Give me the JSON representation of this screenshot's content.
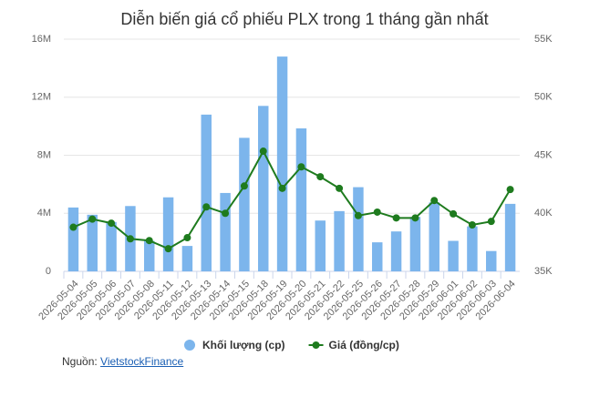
{
  "chart_data": {
    "type": "bar-line",
    "title": "Diễn biến giá cổ phiếu PLX trong 1 tháng gần nhất",
    "categories": [
      "2026-05-04",
      "2026-05-05",
      "2026-05-06",
      "2026-05-07",
      "2026-05-08",
      "2026-05-11",
      "2026-05-12",
      "2026-05-13",
      "2026-05-14",
      "2026-05-15",
      "2026-05-18",
      "2026-05-19",
      "2026-05-20",
      "2026-05-21",
      "2026-05-22",
      "2026-05-25",
      "2026-05-26",
      "2026-05-27",
      "2026-05-28",
      "2026-05-29",
      "2026-06-01",
      "2026-06-02",
      "2026-06-03",
      "2026-06-04"
    ],
    "series": [
      {
        "name": "Khối lượng (cp)",
        "type": "bar",
        "color": "#7cb5ec",
        "axis": "y",
        "values": [
          4400000,
          3900000,
          3400000,
          4500000,
          2100000,
          5100000,
          1750000,
          10800000,
          5400000,
          9200000,
          11400000,
          14800000,
          9850000,
          3500000,
          4150000,
          5800000,
          2000000,
          2750000,
          3750000,
          4750000,
          2100000,
          3100000,
          1400000,
          4650000
        ]
      },
      {
        "name": "Giá (đồng/cp)",
        "type": "line",
        "color": "#1e7b1e",
        "axis": "y2",
        "values": [
          38800,
          39500,
          39150,
          37800,
          37650,
          36950,
          37900,
          40550,
          40000,
          42350,
          45350,
          42150,
          44000,
          43150,
          42150,
          39800,
          40100,
          39600,
          39600,
          41100,
          39950,
          39000,
          39300,
          42050
        ]
      }
    ],
    "ylim": [
      0,
      16000000
    ],
    "yticks": [
      0,
      {
        "value": 4000000,
        "label": "4M"
      },
      {
        "value": 8000000,
        "label": "8M"
      },
      {
        "value": 12000000,
        "label": "12M"
      },
      {
        "value": 16000000,
        "label": "16M"
      }
    ],
    "y2lim": [
      35000,
      55000
    ],
    "y2ticks": [
      {
        "value": 35000,
        "label": "35K"
      },
      {
        "value": 40000,
        "label": "40K"
      },
      {
        "value": 45000,
        "label": "45K"
      },
      {
        "value": 50000,
        "label": "50K"
      },
      {
        "value": 55000,
        "label": "55K"
      }
    ],
    "grid": true
  },
  "source": {
    "label": "Nguồn:",
    "link": "VietstockFinance"
  }
}
